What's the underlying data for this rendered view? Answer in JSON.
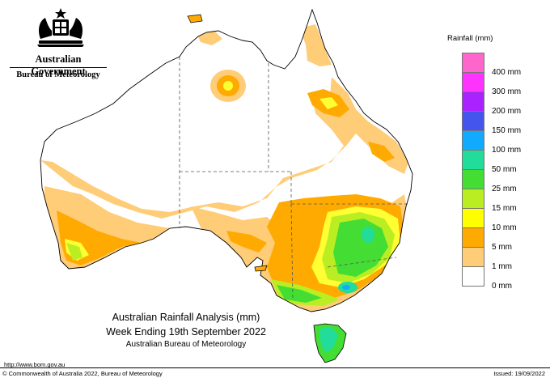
{
  "header": {
    "government": "Australian Government",
    "agency": "Bureau of Meteorology"
  },
  "legend": {
    "title": "Rainfall (mm)",
    "items": [
      {
        "label": "400 mm",
        "color": "#ff66cc"
      },
      {
        "label": "300 mm",
        "color": "#ff33ff"
      },
      {
        "label": "200 mm",
        "color": "#aa22ff"
      },
      {
        "label": "150 mm",
        "color": "#4455ee"
      },
      {
        "label": "100 mm",
        "color": "#11aaff"
      },
      {
        "label": "50 mm",
        "color": "#22dd99"
      },
      {
        "label": "25 mm",
        "color": "#44dd33"
      },
      {
        "label": "15 mm",
        "color": "#bbee22"
      },
      {
        "label": "10 mm",
        "color": "#ffff00"
      },
      {
        "label": "5 mm",
        "color": "#ffaa00"
      },
      {
        "label": "1 mm",
        "color": "#ffcc77"
      },
      {
        "label": "0 mm",
        "color": "#ffffff"
      }
    ]
  },
  "caption": {
    "line1": "Australian Rainfall Analysis (mm)",
    "line2": "Week Ending 19th September 2022",
    "line3": "Australian Bureau of Meteorology"
  },
  "footer": {
    "url": "http://www.bom.gov.au",
    "copyright": "© Commonwealth of Australia 2022, Bureau of Meteorology",
    "issued": "Issued: 19/09/2022"
  }
}
